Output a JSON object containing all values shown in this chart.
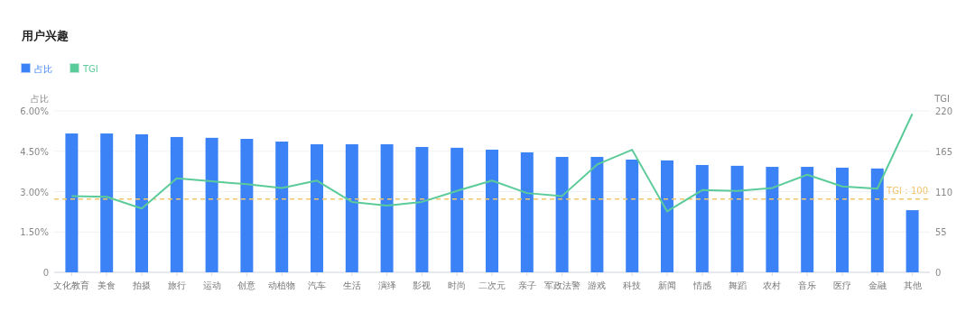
{
  "chart_data": {
    "type": "bar",
    "title": "用户兴趣",
    "ylabel": "占比",
    "y2label": "TGI",
    "categories": [
      "文化教育",
      "美食",
      "拍摄",
      "旅行",
      "运动",
      "创意",
      "动植物",
      "汽车",
      "生活",
      "演绎",
      "影视",
      "时尚",
      "二次元",
      "亲子",
      "军政法警",
      "游戏",
      "科技",
      "新闻",
      "情感",
      "舞蹈",
      "农村",
      "音乐",
      "医疗",
      "金融",
      "其他"
    ],
    "series": [
      {
        "name": "占比",
        "color": "#3a82f6",
        "values": [
          5.16,
          5.16,
          5.13,
          5.03,
          5.0,
          4.96,
          4.86,
          4.76,
          4.76,
          4.76,
          4.66,
          4.63,
          4.56,
          4.46,
          4.29,
          4.29,
          4.19,
          4.16,
          3.99,
          3.96,
          3.92,
          3.92,
          3.89,
          3.86,
          2.31
        ]
      },
      {
        "name": "TGI",
        "type": "line",
        "axis": "y2",
        "color": "#5ccb9a",
        "values": [
          104,
          103,
          87,
          128,
          124,
          120,
          115,
          125,
          96,
          91,
          96,
          111,
          125,
          108,
          104,
          147,
          167,
          83,
          112,
          111,
          115,
          133,
          117,
          114,
          216
        ]
      }
    ],
    "ylim": [
      0,
      6
    ],
    "yticks": [
      0,
      {
        "value": 1.5,
        "label": "1.50%"
      },
      {
        "value": 3,
        "label": "3.00%"
      },
      {
        "value": 4.5,
        "label": "4.50%"
      },
      {
        "value": 6,
        "label": "6.00%"
      }
    ],
    "y2lim": [
      0,
      220
    ],
    "y2ticks": [
      0,
      55,
      110,
      165,
      220
    ],
    "ref_lines": [
      {
        "axis": "y2",
        "value": 100,
        "label": "TGI：100",
        "color": "#f3c46b",
        "line_style": "dashed"
      }
    ],
    "grid": "y",
    "legend": "top left",
    "marker": "none",
    "line_style": "solid"
  }
}
